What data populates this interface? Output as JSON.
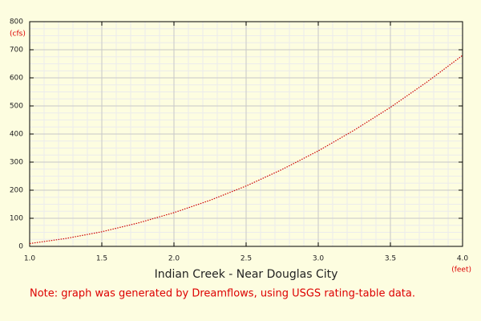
{
  "chart_data": {
    "type": "line",
    "title": "Indian Creek - Near Douglas City",
    "x_unit": "(feet)",
    "y_unit": "(cfs)",
    "note": "Note: graph was generated by Dreamflows, using USGS rating-table data.",
    "x": [
      1.0,
      1.25,
      1.5,
      1.75,
      2.0,
      2.25,
      2.5,
      2.75,
      3.0,
      3.25,
      3.5,
      3.75,
      4.0
    ],
    "series": [
      {
        "color": "#cc0000",
        "values": [
          10,
          28,
          52,
          83,
          120,
          164,
          215,
          274,
          340,
          414,
          495,
          584,
          680
        ]
      }
    ],
    "xlim": [
      1.0,
      4.0
    ],
    "xticks": [
      {
        "value": 1.0,
        "label": "1.0"
      },
      1.5,
      {
        "value": 2.0,
        "label": "2.0"
      },
      2.5,
      {
        "value": 3.0,
        "label": "3.0"
      },
      3.5,
      {
        "value": 4.0,
        "label": "4.0"
      }
    ],
    "ylim": [
      0,
      800
    ],
    "yticks": [
      0,
      100,
      200,
      300,
      400,
      500,
      600,
      700,
      800
    ],
    "grid": true
  }
}
